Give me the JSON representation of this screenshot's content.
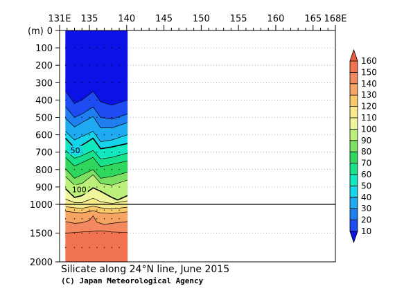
{
  "chart_data": {
    "type": "contour-section",
    "title": "Silicate along 24°N line, June 2015",
    "credit": "(C) Japan Meteorological Agency",
    "ylabel": "(m)",
    "x_ticks": [
      {
        "value": 131,
        "label": "131E"
      },
      {
        "value": 135,
        "label": "135"
      },
      {
        "value": 140,
        "label": "140"
      },
      {
        "value": 145,
        "label": "145"
      },
      {
        "value": 150,
        "label": "150"
      },
      {
        "value": 155,
        "label": "155"
      },
      {
        "value": 160,
        "label": "160"
      },
      {
        "value": 165,
        "label": "165"
      },
      {
        "value": 168,
        "label": "168E"
      }
    ],
    "xlim": [
      131,
      168
    ],
    "upper_depth_ticks": [
      0,
      100,
      200,
      300,
      400,
      500,
      600,
      700,
      800,
      900,
      1000
    ],
    "lower_depth_ticks": [
      1500,
      2000
    ],
    "ylim": [
      0,
      2000
    ],
    "depth_axis_break": 1000,
    "data_longitude_range": [
      131.8,
      140.1
    ],
    "levels": [
      10,
      20,
      30,
      40,
      50,
      60,
      70,
      80,
      90,
      100,
      110,
      120,
      130,
      140,
      150,
      160
    ],
    "colorbar_labels": [
      "160",
      "150",
      "140",
      "130",
      "120",
      "110",
      "100",
      "90",
      "80",
      "70",
      "60",
      "50",
      "40",
      "30",
      "20",
      "10"
    ],
    "colors": [
      "#0a12e6",
      "#1f4cf2",
      "#1f7ef0",
      "#1eaaf0",
      "#16d4ea",
      "#12e8c0",
      "#19e08a",
      "#2fd85c",
      "#7ee062",
      "#bdf07a",
      "#eef59a",
      "#f6ea8a",
      "#f9c868",
      "#f6a564",
      "#f48860",
      "#f2734f",
      "#ef5b3d"
    ],
    "contour_labels": [
      {
        "value": "50",
        "lon": 133.2,
        "depth": 690
      },
      {
        "value": "100",
        "lon": 133.4,
        "depth": 915
      }
    ],
    "contours": [
      {
        "value": 10,
        "lon": [
          131.8,
          133.0,
          134.0,
          135.5,
          136.5,
          138.0,
          140.1
        ],
        "depth": [
          350,
          420,
          400,
          350,
          410,
          430,
          400
        ]
      },
      {
        "value": 20,
        "lon": [
          131.8,
          133.0,
          134.0,
          135.5,
          136.5,
          138.0,
          140.1
        ],
        "depth": [
          440,
          500,
          480,
          440,
          500,
          510,
          480
        ]
      },
      {
        "value": 30,
        "lon": [
          131.8,
          133.0,
          134.0,
          135.5,
          136.5,
          138.0,
          140.1
        ],
        "depth": [
          505,
          555,
          530,
          495,
          560,
          560,
          530
        ]
      },
      {
        "value": 40,
        "lon": [
          131.8,
          133.0,
          134.0,
          135.5,
          136.5,
          138.0,
          140.1
        ],
        "depth": [
          580,
          630,
          610,
          580,
          640,
          630,
          600
        ]
      },
      {
        "value": 50,
        "lon": [
          131.8,
          133.0,
          134.0,
          135.5,
          136.5,
          138.0,
          140.1
        ],
        "depth": [
          620,
          675,
          660,
          620,
          680,
          670,
          650
        ]
      },
      {
        "value": 60,
        "lon": [
          131.8,
          133.0,
          134.0,
          135.5,
          136.5,
          138.0,
          140.1
        ],
        "depth": [
          690,
          735,
          720,
          690,
          740,
          730,
          705
        ]
      },
      {
        "value": 70,
        "lon": [
          131.8,
          133.0,
          134.0,
          135.5,
          136.5,
          138.0,
          140.1
        ],
        "depth": [
          730,
          780,
          760,
          730,
          785,
          770,
          750
        ]
      },
      {
        "value": 80,
        "lon": [
          131.8,
          133.0,
          134.0,
          135.5,
          136.5,
          138.0,
          140.1
        ],
        "depth": [
          795,
          850,
          830,
          800,
          850,
          840,
          815
        ]
      },
      {
        "value": 90,
        "lon": [
          131.8,
          133.0,
          134.0,
          135.5,
          136.5,
          138.0,
          140.1
        ],
        "depth": [
          840,
          890,
          880,
          830,
          880,
          890,
          860
        ]
      },
      {
        "value": 100,
        "lon": [
          131.8,
          133.0,
          134.0,
          135.5,
          136.5,
          138.0,
          138.8,
          140.1
        ],
        "depth": [
          910,
          960,
          950,
          905,
          925,
          960,
          975,
          950
        ]
      },
      {
        "value": 110,
        "lon": [
          131.8,
          133.0,
          134.0,
          135.5,
          136.5,
          138.0,
          140.1
        ],
        "depth": [
          970,
          990,
          990,
          965,
          985,
          995,
          980
        ]
      },
      {
        "value": 120,
        "lon": [
          131.8,
          133.0,
          134.0,
          135.5,
          136.5,
          138.0,
          140.1
        ],
        "depth": [
          1040,
          1060,
          1070,
          1030,
          1060,
          1080,
          1050
        ]
      },
      {
        "value": 130,
        "lon": [
          131.8,
          133.0,
          134.0,
          135.5,
          136.5,
          138.0,
          140.1
        ],
        "depth": [
          1120,
          1140,
          1150,
          1110,
          1150,
          1160,
          1130
        ]
      },
      {
        "value": 140,
        "lon": [
          131.8,
          133.0,
          134.0,
          135.0,
          135.5,
          136.0,
          137.0,
          138.0,
          140.1
        ],
        "depth": [
          1300,
          1330,
          1320,
          1280,
          1200,
          1310,
          1350,
          1330,
          1300
        ]
      },
      {
        "value": 150,
        "lon": [
          131.8,
          133.0,
          134.0,
          135.5,
          136.5,
          138.0,
          140.1
        ],
        "depth": [
          1500,
          1490,
          1480,
          1470,
          1460,
          1480,
          1490
        ]
      }
    ],
    "station_lons": [
      131.8,
      133.0,
      134.0,
      135.0,
      136.0,
      137.0,
      138.0,
      139.0
    ],
    "sample_depths": [
      100,
      200,
      300,
      400,
      500,
      600,
      700,
      800,
      900,
      1000,
      1100,
      1250,
      1500,
      1750
    ],
    "colorbar_extend": "both"
  }
}
